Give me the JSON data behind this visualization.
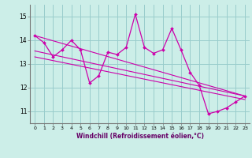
{
  "title": "",
  "xlabel": "Windchill (Refroidissement éolien,°C)",
  "ylabel": "",
  "background_color": "#cceee8",
  "line_color": "#cc00aa",
  "grid_color": "#99cccc",
  "xlim": [
    -0.5,
    23.5
  ],
  "ylim": [
    10.5,
    15.5
  ],
  "xticks": [
    0,
    1,
    2,
    3,
    4,
    5,
    6,
    7,
    8,
    9,
    10,
    11,
    12,
    13,
    14,
    15,
    16,
    17,
    18,
    19,
    20,
    21,
    22,
    23
  ],
  "yticks": [
    11,
    12,
    13,
    14,
    15
  ],
  "main_x": [
    0,
    1,
    2,
    3,
    4,
    5,
    6,
    7,
    8,
    9,
    10,
    11,
    12,
    13,
    14,
    15,
    16,
    17,
    18,
    19,
    20,
    21,
    22,
    23
  ],
  "main_y": [
    14.2,
    13.9,
    13.3,
    13.6,
    14.0,
    13.6,
    12.2,
    12.5,
    13.5,
    13.4,
    13.7,
    15.1,
    13.7,
    13.45,
    13.6,
    14.5,
    13.6,
    12.65,
    12.1,
    10.9,
    11.0,
    11.15,
    11.4,
    11.65
  ],
  "line1_x": [
    0,
    23
  ],
  "line1_y": [
    14.2,
    11.65
  ],
  "line2_x": [
    0,
    23
  ],
  "line2_y": [
    13.55,
    11.65
  ],
  "line3_x": [
    0,
    23
  ],
  "line3_y": [
    13.3,
    11.5
  ]
}
